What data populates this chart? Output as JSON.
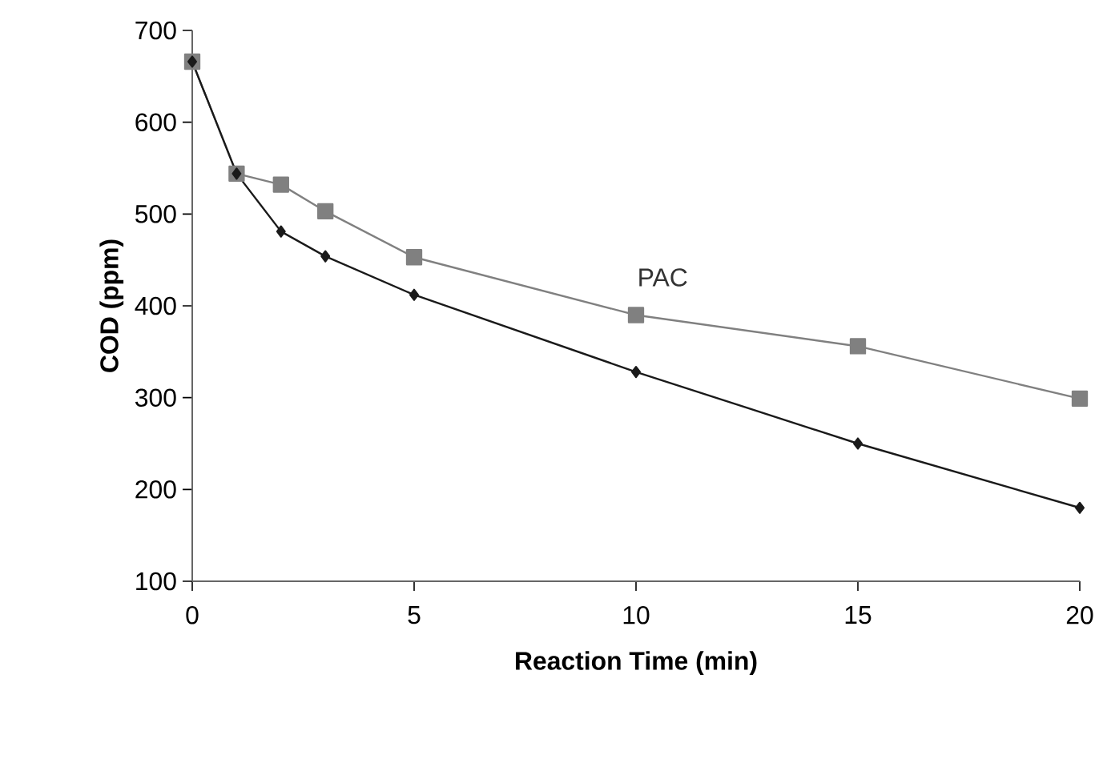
{
  "chart_data": {
    "type": "line",
    "xlabel": "Reaction Time (min)",
    "ylabel": "COD (ppm)",
    "xlim": [
      0,
      20
    ],
    "xticks": [
      0,
      5,
      10,
      15,
      20
    ],
    "ylim": [
      100,
      700
    ],
    "yticks": [
      100,
      200,
      300,
      400,
      500,
      600,
      700
    ],
    "series": [
      {
        "name": "PAC",
        "color": "#808080",
        "marker": "square",
        "x": [
          0,
          1,
          2,
          3,
          5,
          10,
          15,
          20
        ],
        "values": [
          666,
          544,
          532,
          503,
          453,
          390,
          356,
          299
        ]
      },
      {
        "color": "#1a1a1a",
        "marker": "diamond",
        "x": [
          0,
          1,
          2,
          3,
          5,
          10,
          15,
          20
        ],
        "values": [
          666,
          544,
          481,
          454,
          412,
          328,
          250,
          180
        ]
      }
    ]
  }
}
